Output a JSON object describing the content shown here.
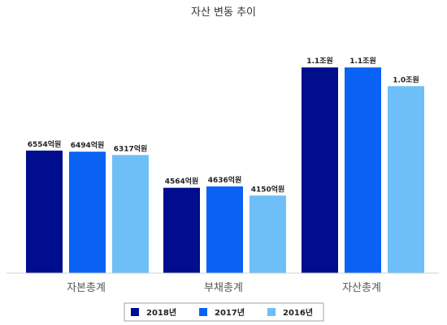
{
  "chart_data": {
    "type": "bar",
    "title": "자산 변동 추이",
    "xlabel": "",
    "ylabel": "",
    "categories": [
      "자본총계",
      "부채총계",
      "자산총계"
    ],
    "unit": "억원",
    "series": [
      {
        "name": "2018년",
        "color": "#000D8C",
        "values": [
          6554,
          4564,
          11000
        ],
        "labels": [
          "6554억원",
          "4564억원",
          "1.1조원"
        ]
      },
      {
        "name": "2017년",
        "color": "#0A62F5",
        "values": [
          6494,
          4636,
          11000
        ],
        "labels": [
          "6494억원",
          "4636억원",
          "1.1조원"
        ]
      },
      {
        "name": "2016년",
        "color": "#6EBFF7",
        "values": [
          6317,
          4150,
          10000
        ],
        "labels": [
          "6317억원",
          "4150억원",
          "1.0조원"
        ]
      }
    ],
    "ylim": [
      0,
      12700
    ],
    "grid": false,
    "legend_position": "bottom-center"
  }
}
